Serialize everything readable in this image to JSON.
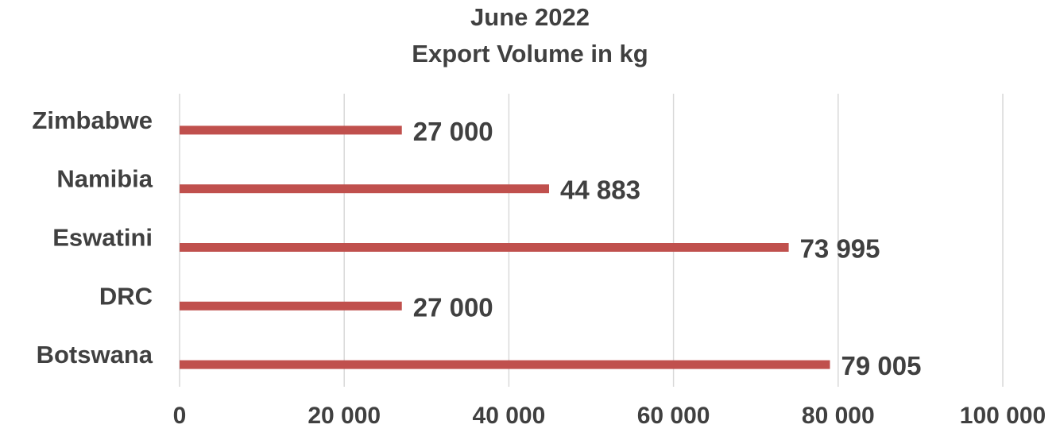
{
  "chart_data": {
    "type": "bar",
    "orientation": "horizontal",
    "title": "June 2022",
    "subtitle": "Export Volume in kg",
    "categories": [
      "Zimbabwe",
      "Namibia",
      "Eswatini",
      "DRC",
      "Botswana"
    ],
    "values": [
      27000,
      44883,
      73995,
      27000,
      79005
    ],
    "data_labels": [
      "27 000",
      "44 883",
      "73 995",
      "27 000",
      "79 005"
    ],
    "xlim": [
      0,
      100000
    ],
    "xticks": [
      0,
      20000,
      40000,
      60000,
      80000,
      100000
    ],
    "xtick_labels": [
      "0",
      "20 000",
      "40 000",
      "60 000",
      "80 000",
      "100 000"
    ],
    "grid": true,
    "legend": "none",
    "colors": {
      "bar": "#c0504d",
      "grid": "#d9d9d9",
      "text": "#404040"
    }
  }
}
